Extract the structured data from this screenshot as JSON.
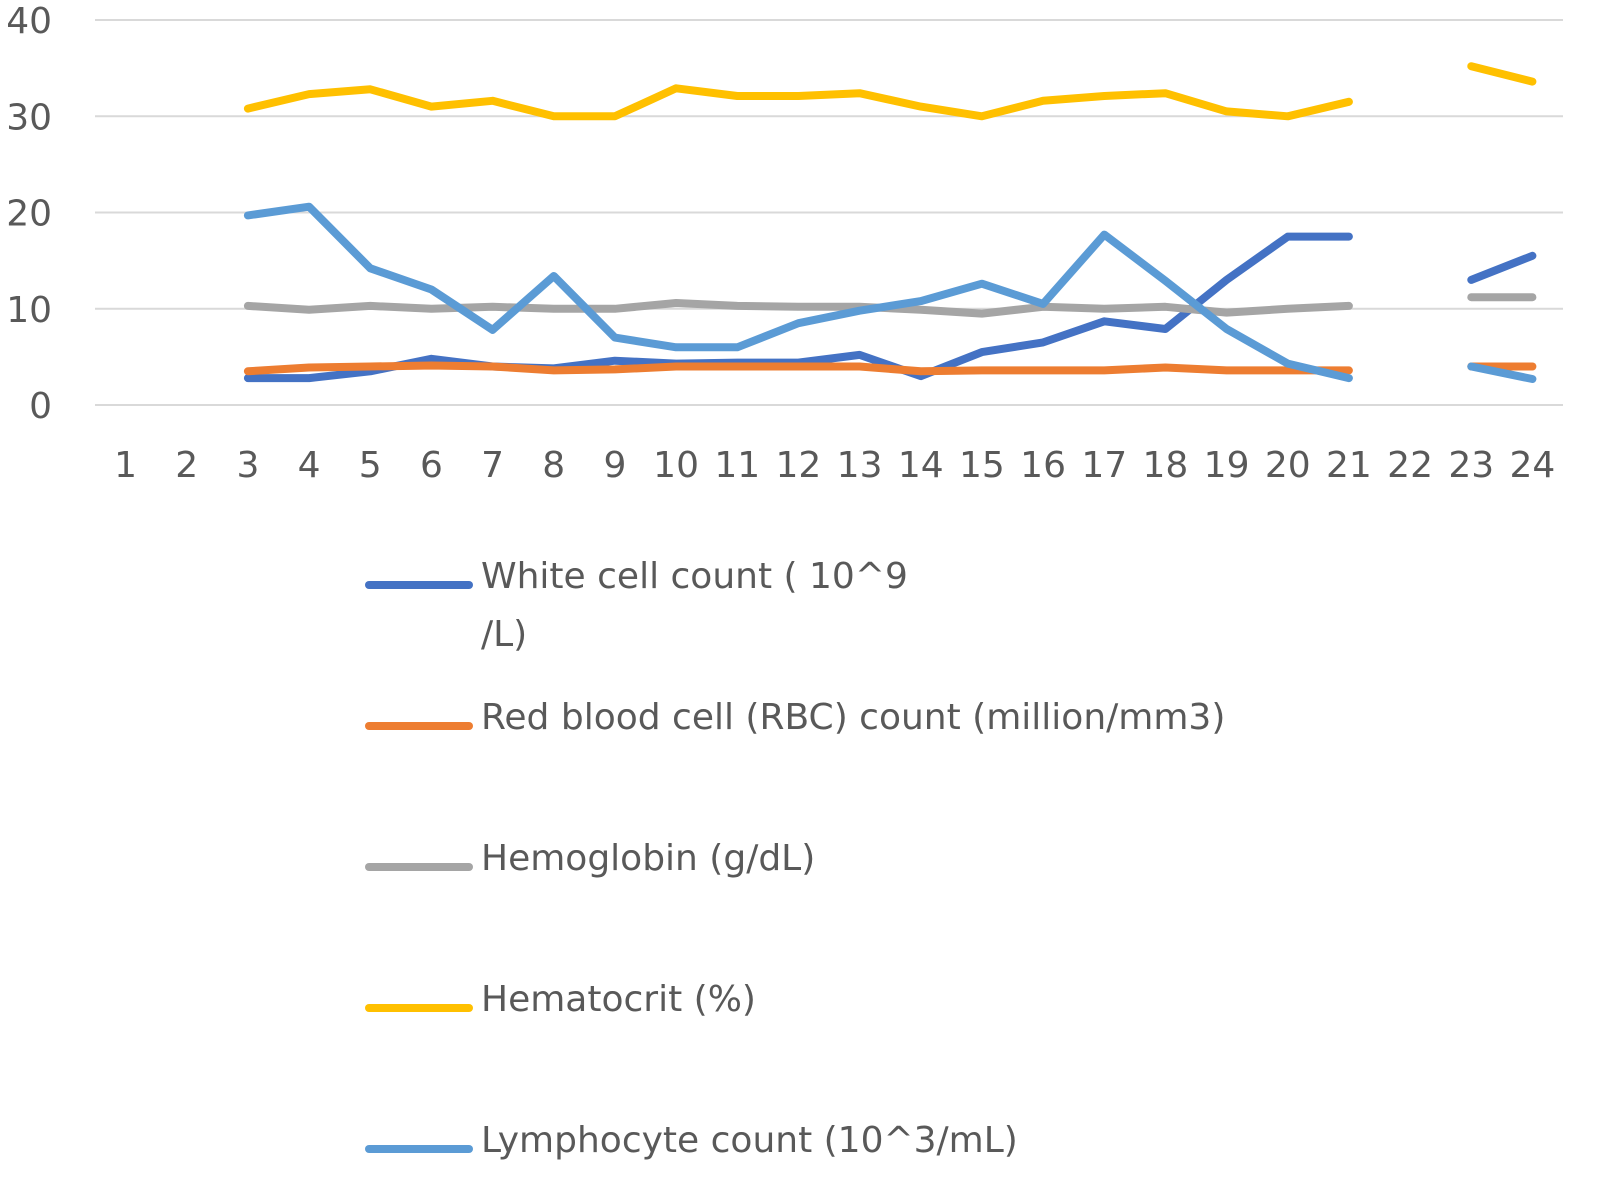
{
  "chart_data": {
    "type": "line",
    "title": "",
    "xlabel": "",
    "ylabel": "",
    "ylim": [
      0,
      40
    ],
    "yticks": [
      "0",
      "10",
      "20",
      "30",
      "40"
    ],
    "categories": [
      "1",
      "2",
      "3",
      "4",
      "5",
      "6",
      "7",
      "8",
      "9",
      "10",
      "11",
      "12",
      "13",
      "14",
      "15",
      "16",
      "17",
      "18",
      "19",
      "20",
      "21",
      "22",
      "23",
      "24"
    ],
    "grid": true,
    "legend_position": "bottom",
    "series": [
      {
        "name": "White cell count ( 10^9 /L)",
        "color": "#4472C4",
        "values": [
          null,
          null,
          2.8,
          2.8,
          3.5,
          4.8,
          4.0,
          3.8,
          4.6,
          4.3,
          4.4,
          4.4,
          5.2,
          3.0,
          5.5,
          6.5,
          8.7,
          7.9,
          13.0,
          17.5,
          17.5,
          null,
          13.0,
          15.5
        ]
      },
      {
        "name": "Red blood cell (RBC) count (million/mm3)",
        "color": "#ED7D31",
        "values": [
          null,
          null,
          3.5,
          3.9,
          4.0,
          4.1,
          4.0,
          3.6,
          3.7,
          4.0,
          4.0,
          4.0,
          4.0,
          3.5,
          3.6,
          3.6,
          3.6,
          3.9,
          3.6,
          3.6,
          3.6,
          null,
          4.0,
          4.0
        ]
      },
      {
        "name": "Hemoglobin (g/dL)",
        "color": "#A5A5A5",
        "values": [
          null,
          null,
          10.3,
          9.9,
          10.3,
          10.0,
          10.2,
          10.0,
          10.0,
          10.6,
          10.3,
          10.2,
          10.2,
          9.9,
          9.5,
          10.2,
          10.0,
          10.2,
          9.6,
          10.0,
          10.3,
          null,
          11.2,
          11.2
        ]
      },
      {
        "name": "Hematocrit (%)",
        "color": "#FFC000",
        "values": [
          null,
          null,
          30.8,
          32.3,
          32.8,
          31.0,
          31.6,
          30.0,
          30.0,
          32.9,
          32.1,
          32.1,
          32.4,
          31.0,
          30.0,
          31.6,
          32.1,
          32.4,
          30.5,
          30.0,
          31.5,
          null,
          35.2,
          33.6
        ]
      },
      {
        "name": "Lymphocyte count (10^3/mL)",
        "color": "#5B9BD5",
        "values": [
          null,
          null,
          19.7,
          20.6,
          14.2,
          12.0,
          7.8,
          13.4,
          7.0,
          6.0,
          6.0,
          8.5,
          9.8,
          10.8,
          12.6,
          10.5,
          17.7,
          12.9,
          7.9,
          4.3,
          2.8,
          null,
          4.0,
          2.7
        ]
      }
    ]
  }
}
